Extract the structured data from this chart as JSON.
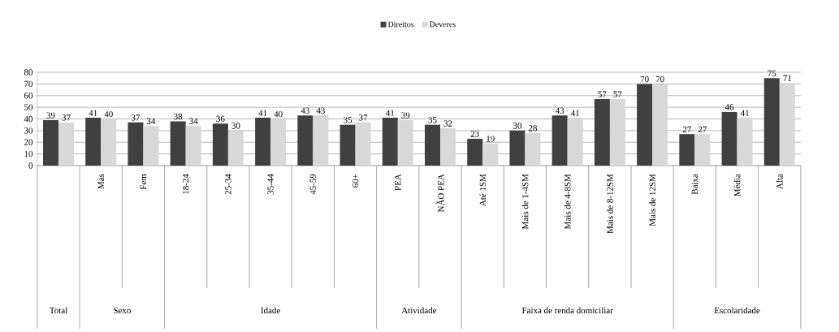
{
  "chart_data": {
    "type": "bar",
    "categories": [
      null,
      "Mas",
      "Fem",
      "18-24",
      "25-34",
      "35-44",
      "45-59",
      "60+",
      "PEA",
      "NÃO PEA",
      "Até 1SM",
      "Mais de 1-4SM",
      "Mais de 4-8SM",
      "Mais de 8-12SM",
      "Mais de 12SM",
      "Baixa",
      "Média",
      "Alta"
    ],
    "series": [
      {
        "name": "Direitos",
        "color": "#404040",
        "values": [
          39,
          41,
          37,
          38,
          36,
          41,
          43,
          35,
          41,
          35,
          23,
          30,
          43,
          57,
          70,
          27,
          46,
          75
        ]
      },
      {
        "name": "Deveres",
        "color": "#d9d9d9",
        "values": [
          37,
          40,
          34,
          34,
          30,
          40,
          43,
          37,
          39,
          32,
          19,
          28,
          41,
          57,
          70,
          27,
          41,
          71
        ]
      }
    ],
    "annotations": [
      "Total",
      "Sexo",
      "Idade",
      "Atividade",
      "Faixa de renda domiciliar",
      "Escolaridade"
    ],
    "ylim": [
      0,
      80
    ],
    "yticks": [
      0,
      10,
      20,
      30,
      40,
      50,
      60,
      70,
      80
    ],
    "grid": "y",
    "legend": "top",
    "data_labels": true
  }
}
